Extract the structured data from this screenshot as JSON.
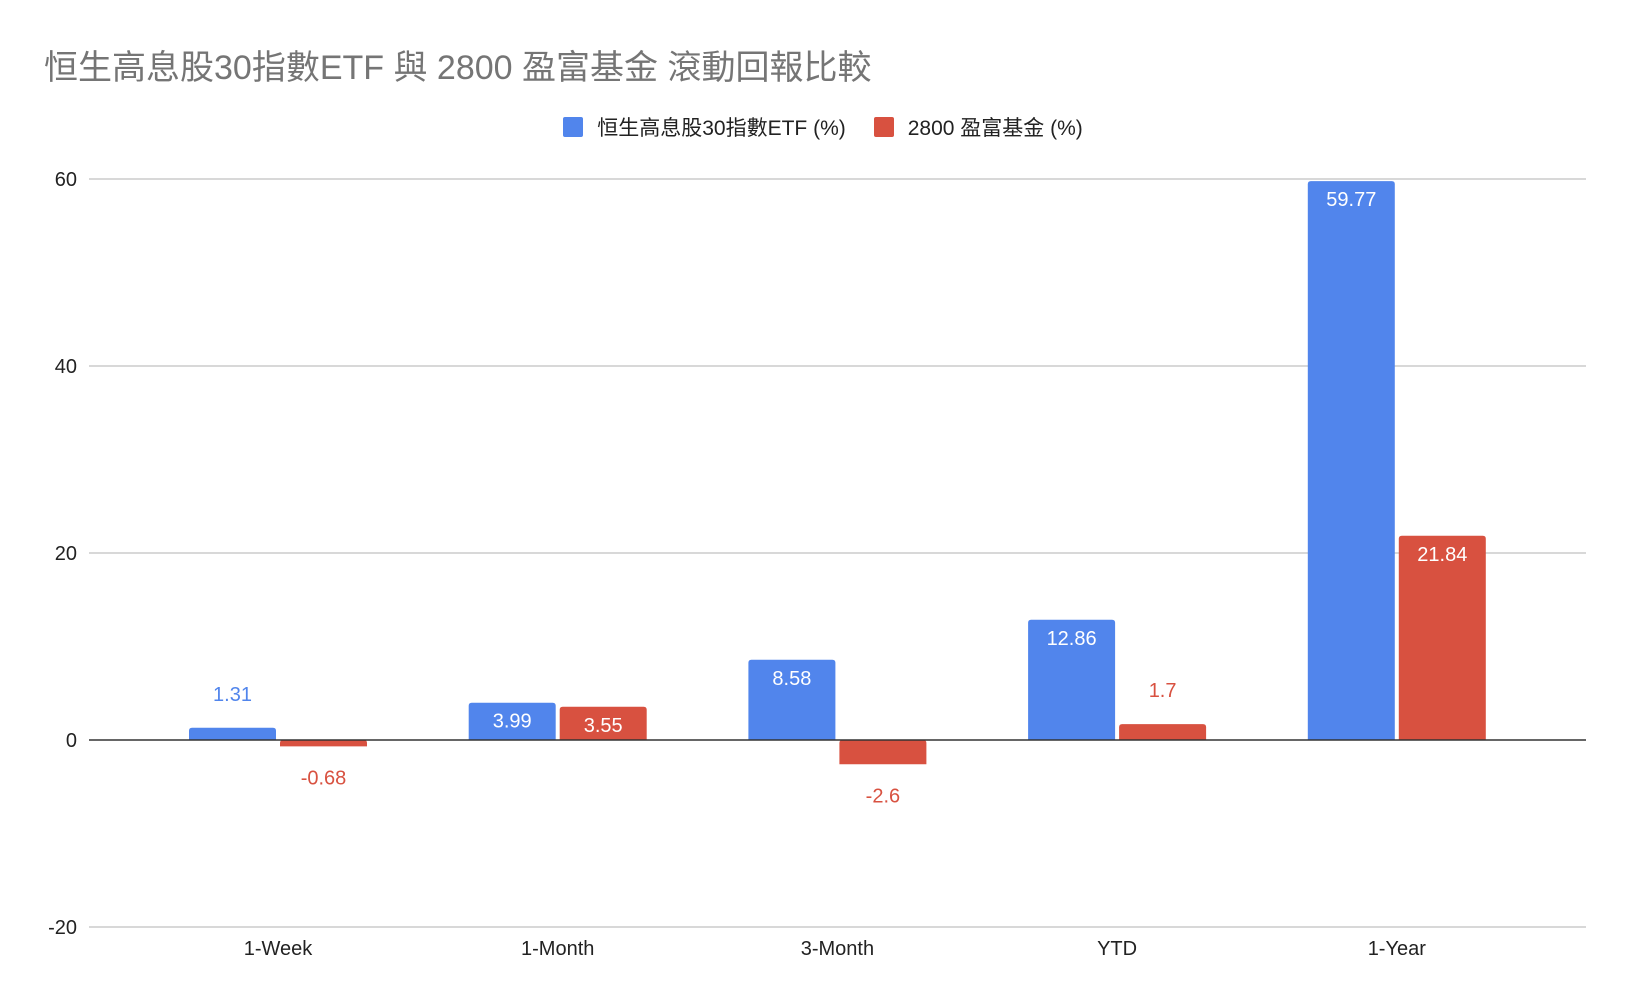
{
  "chart_data": {
    "type": "bar",
    "title": "恒生高息股30指數ETF 與 2800 盈富基金 滾動回報比較",
    "categories": [
      "1-Week",
      "1-Month",
      "3-Month",
      "YTD",
      "1-Year"
    ],
    "series": [
      {
        "name": "恒生高息股30指數ETF  (%)",
        "color": "#5185EC",
        "values": [
          1.31,
          3.99,
          8.58,
          12.86,
          59.77
        ]
      },
      {
        "name": "2800 盈富基金 (%)",
        "color": "#D85140",
        "values": [
          -0.68,
          3.55,
          -2.6,
          1.7,
          21.84
        ]
      }
    ],
    "ylim": [
      -20,
      60
    ],
    "yticks": [
      "-20",
      "0",
      "20",
      "40",
      "60"
    ],
    "grid": true,
    "legend_position": "top",
    "xlabel": "",
    "ylabel": ""
  }
}
